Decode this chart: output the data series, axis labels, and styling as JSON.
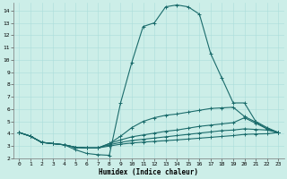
{
  "xlabel": "Humidex (Indice chaleur)",
  "bg_color": "#cceee8",
  "line_color": "#1a6b6b",
  "xlim": [
    -0.5,
    23.5
  ],
  "ylim": [
    2,
    14.6
  ],
  "yticks": [
    2,
    3,
    4,
    5,
    6,
    7,
    8,
    9,
    10,
    11,
    12,
    13,
    14
  ],
  "xticks": [
    0,
    1,
    2,
    3,
    4,
    5,
    6,
    7,
    8,
    9,
    10,
    11,
    12,
    13,
    14,
    15,
    16,
    17,
    18,
    19,
    20,
    21,
    22,
    23
  ],
  "lines": [
    {
      "x": [
        0,
        1,
        2,
        3,
        4,
        5,
        6,
        7,
        8,
        9,
        10,
        11,
        12,
        13,
        14,
        15,
        16,
        17,
        18,
        19,
        20,
        21,
        22,
        23
      ],
      "y": [
        4.1,
        3.8,
        3.3,
        3.2,
        3.1,
        2.7,
        2.4,
        2.3,
        2.25,
        6.5,
        9.8,
        12.7,
        13.0,
        14.3,
        14.45,
        14.3,
        13.7,
        10.5,
        8.5,
        6.5,
        6.5,
        5.0,
        4.5,
        4.1
      ]
    },
    {
      "x": [
        0,
        1,
        2,
        3,
        4,
        5,
        6,
        7,
        8,
        9,
        10,
        11,
        12,
        13,
        14,
        15,
        16,
        17,
        18,
        19,
        20,
        21,
        22,
        23
      ],
      "y": [
        4.1,
        3.8,
        3.3,
        3.2,
        3.1,
        2.9,
        2.85,
        2.85,
        3.2,
        3.8,
        4.5,
        5.0,
        5.3,
        5.5,
        5.6,
        5.75,
        5.9,
        6.05,
        6.1,
        6.15,
        5.4,
        4.95,
        4.4,
        4.1
      ]
    },
    {
      "x": [
        0,
        1,
        2,
        3,
        4,
        5,
        6,
        7,
        8,
        9,
        10,
        11,
        12,
        13,
        14,
        15,
        16,
        17,
        18,
        19,
        20,
        21,
        22,
        23
      ],
      "y": [
        4.1,
        3.8,
        3.3,
        3.2,
        3.1,
        2.9,
        2.85,
        2.85,
        3.2,
        3.5,
        3.75,
        3.9,
        4.05,
        4.2,
        4.3,
        4.45,
        4.6,
        4.7,
        4.8,
        4.9,
        5.3,
        4.85,
        4.4,
        4.1
      ]
    },
    {
      "x": [
        0,
        1,
        2,
        3,
        4,
        5,
        6,
        7,
        8,
        9,
        10,
        11,
        12,
        13,
        14,
        15,
        16,
        17,
        18,
        19,
        20,
        21,
        22,
        23
      ],
      "y": [
        4.1,
        3.8,
        3.3,
        3.2,
        3.1,
        2.9,
        2.85,
        2.85,
        3.1,
        3.3,
        3.45,
        3.55,
        3.65,
        3.75,
        3.85,
        3.95,
        4.05,
        4.15,
        4.25,
        4.3,
        4.4,
        4.35,
        4.3,
        4.1
      ]
    },
    {
      "x": [
        0,
        1,
        2,
        3,
        4,
        5,
        6,
        7,
        8,
        9,
        10,
        11,
        12,
        13,
        14,
        15,
        16,
        17,
        18,
        19,
        20,
        21,
        22,
        23
      ],
      "y": [
        4.1,
        3.8,
        3.3,
        3.2,
        3.1,
        2.9,
        2.85,
        2.85,
        3.0,
        3.15,
        3.25,
        3.32,
        3.38,
        3.44,
        3.5,
        3.57,
        3.64,
        3.71,
        3.78,
        3.85,
        3.95,
        3.98,
        4.0,
        4.1
      ]
    }
  ]
}
